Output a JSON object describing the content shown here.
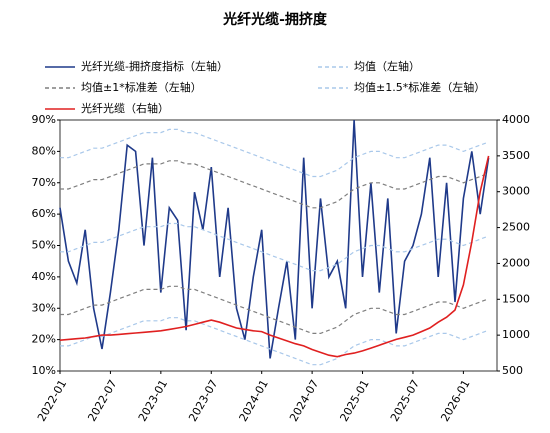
{
  "chart_data": {
    "type": "line",
    "title": "光纤光缆-拥挤度",
    "x": [
      "2022-01",
      "2022-02",
      "2022-03",
      "2022-04",
      "2022-05",
      "2022-06",
      "2022-07",
      "2022-08",
      "2022-09",
      "2022-10",
      "2022-11",
      "2022-12",
      "2023-01",
      "2023-02",
      "2023-03",
      "2023-04",
      "2023-05",
      "2023-06",
      "2023-07",
      "2023-08",
      "2023-09",
      "2023-10",
      "2023-11",
      "2023-12",
      "2024-01",
      "2024-02",
      "2024-03",
      "2024-04",
      "2024-05",
      "2024-06",
      "2024-07",
      "2024-08",
      "2024-09",
      "2024-10",
      "2024-11",
      "2024-12",
      "2025-01",
      "2025-02",
      "2025-03",
      "2025-04",
      "2025-05",
      "2025-06",
      "2025-07",
      "2025-08",
      "2025-09",
      "2025-10",
      "2025-11",
      "2025-12",
      "2026-01",
      "2026-02",
      "2026-03",
      "2026-04"
    ],
    "xlim": [
      "2022-01",
      "2026-05"
    ],
    "xticks": [
      "2022-01",
      "2022-07",
      "2023-01",
      "2023-07",
      "2024-01",
      "2024-07",
      "2025-01",
      "2025-07",
      "2026-01"
    ],
    "ylim": [
      10,
      90
    ],
    "yticks": [
      {
        "value": 10,
        "label": "10%"
      },
      {
        "value": 20,
        "label": "20%"
      },
      {
        "value": 30,
        "label": "30%"
      },
      {
        "value": 40,
        "label": "40%"
      },
      {
        "value": 50,
        "label": "50%"
      },
      {
        "value": 60,
        "label": "60%"
      },
      {
        "value": 70,
        "label": "70%"
      },
      {
        "value": 80,
        "label": "80%"
      },
      {
        "value": 90,
        "label": "90%"
      }
    ],
    "y2lim": [
      500,
      4000
    ],
    "y2ticks": [
      500,
      1000,
      1500,
      2000,
      2500,
      3000,
      3500,
      4000
    ],
    "series": [
      {
        "name": "光纤光缆-拥挤度指标（左轴）",
        "color": "#1f3a8a",
        "values": [
          62,
          45,
          38,
          55,
          30,
          17,
          35,
          55,
          82,
          80,
          50,
          78,
          35,
          62,
          58,
          23,
          67,
          55,
          75,
          40,
          62,
          30,
          20,
          40,
          55,
          14,
          30,
          45,
          20,
          78,
          30,
          65,
          40,
          45,
          30,
          90,
          40,
          70,
          35,
          65,
          22,
          45,
          50,
          60,
          78,
          40,
          70,
          32,
          65,
          80,
          60,
          78
        ]
      },
      {
        "name": "均值（左轴）",
        "color": "#a9c8ea",
        "dash": true,
        "values": [
          48,
          48,
          49,
          50,
          51,
          51,
          52,
          53,
          54,
          55,
          56,
          56,
          56,
          57,
          57,
          56,
          56,
          55,
          54,
          53,
          52,
          51,
          50,
          49,
          48,
          47,
          46,
          45,
          44,
          43,
          42,
          42,
          43,
          44,
          46,
          48,
          49,
          50,
          50,
          49,
          48,
          48,
          49,
          50,
          51,
          52,
          52,
          51,
          50,
          51,
          52,
          53
        ]
      },
      {
        "name": "均值±1*标准差（左轴）",
        "color": "#7f7f7f",
        "dash": true,
        "upper": [
          68,
          68,
          69,
          70,
          71,
          71,
          72,
          73,
          74,
          75,
          76,
          76,
          76,
          77,
          77,
          76,
          76,
          75,
          74,
          73,
          72,
          71,
          70,
          69,
          68,
          67,
          66,
          65,
          64,
          63,
          62,
          62,
          63,
          64,
          66,
          68,
          69,
          70,
          70,
          69,
          68,
          68,
          69,
          70,
          71,
          72,
          72,
          71,
          70,
          71,
          72,
          73
        ],
        "lower": [
          28,
          28,
          29,
          30,
          31,
          31,
          32,
          33,
          34,
          35,
          36,
          36,
          36,
          37,
          37,
          36,
          36,
          35,
          34,
          33,
          32,
          31,
          30,
          29,
          28,
          27,
          26,
          25,
          24,
          23,
          22,
          22,
          23,
          24,
          26,
          28,
          29,
          30,
          30,
          29,
          28,
          28,
          29,
          30,
          31,
          32,
          32,
          31,
          30,
          31,
          32,
          33
        ]
      },
      {
        "name": "均值±1.5*标准差（左轴）",
        "color": "#a9c8ea",
        "dash": true,
        "upper": [
          78,
          78,
          79,
          80,
          81,
          81,
          82,
          83,
          84,
          85,
          86,
          86,
          86,
          87,
          87,
          86,
          86,
          85,
          84,
          83,
          82,
          81,
          80,
          79,
          78,
          77,
          76,
          75,
          74,
          73,
          72,
          72,
          73,
          74,
          76,
          78,
          79,
          80,
          80,
          79,
          78,
          78,
          79,
          80,
          81,
          82,
          82,
          81,
          80,
          81,
          82,
          83
        ],
        "lower": [
          18,
          18,
          19,
          20,
          21,
          21,
          22,
          23,
          24,
          25,
          26,
          26,
          26,
          27,
          27,
          26,
          26,
          25,
          24,
          23,
          22,
          21,
          20,
          19,
          18,
          17,
          16,
          15,
          14,
          13,
          12,
          12,
          13,
          14,
          16,
          18,
          19,
          20,
          20,
          19,
          18,
          18,
          19,
          20,
          21,
          22,
          22,
          21,
          20,
          21,
          22,
          23
        ]
      },
      {
        "name": "光纤光缆（右轴）",
        "color": "#e02020",
        "axis": "y2",
        "values": [
          930,
          940,
          950,
          960,
          980,
          1000,
          1000,
          1010,
          1020,
          1030,
          1040,
          1050,
          1060,
          1080,
          1100,
          1120,
          1150,
          1180,
          1210,
          1180,
          1140,
          1100,
          1080,
          1060,
          1050,
          1000,
          960,
          920,
          880,
          850,
          800,
          760,
          720,
          700,
          730,
          750,
          780,
          820,
          860,
          900,
          940,
          970,
          1000,
          1050,
          1100,
          1180,
          1250,
          1350,
          1700,
          2300,
          3000,
          3500
        ]
      }
    ]
  }
}
